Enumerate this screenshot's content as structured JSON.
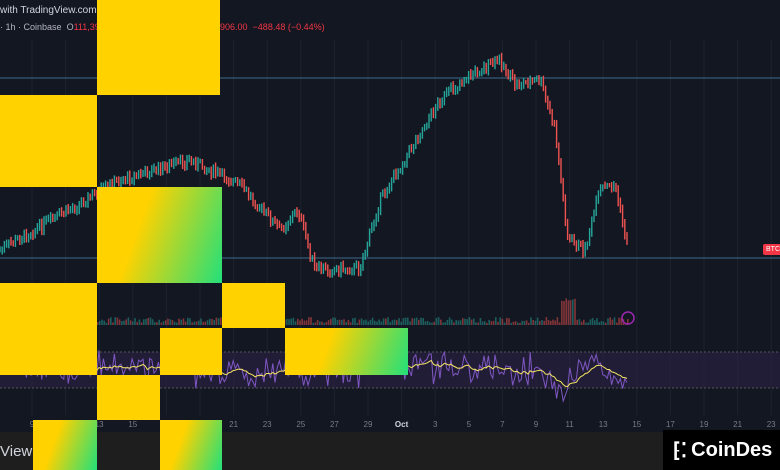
{
  "header": {
    "title": "with TradingView.com, Oct",
    "line": "· 1h · Coinbase",
    "open_label": "O",
    "open_value": "111,395.6",
    "close_value": "906.00",
    "change": "−488.48 (−0.44%)"
  },
  "price_tag": "BTC",
  "x_axis": [
    "9",
    "11",
    "13",
    "15",
    "17",
    "19",
    "21",
    "23",
    "25",
    "27",
    "29",
    "Oct",
    "3",
    "5",
    "7",
    "9",
    "11",
    "13",
    "15",
    "17",
    "19",
    "21",
    "23"
  ],
  "footer": {
    "text": "View",
    "logo": "CoinDes"
  },
  "colors": {
    "background": "#131722",
    "up": "#26a69a",
    "down": "#ef5350",
    "rsi": "#7e57c2",
    "rsi_ma": "#f5e663",
    "redaction": "#ffd200"
  }
}
